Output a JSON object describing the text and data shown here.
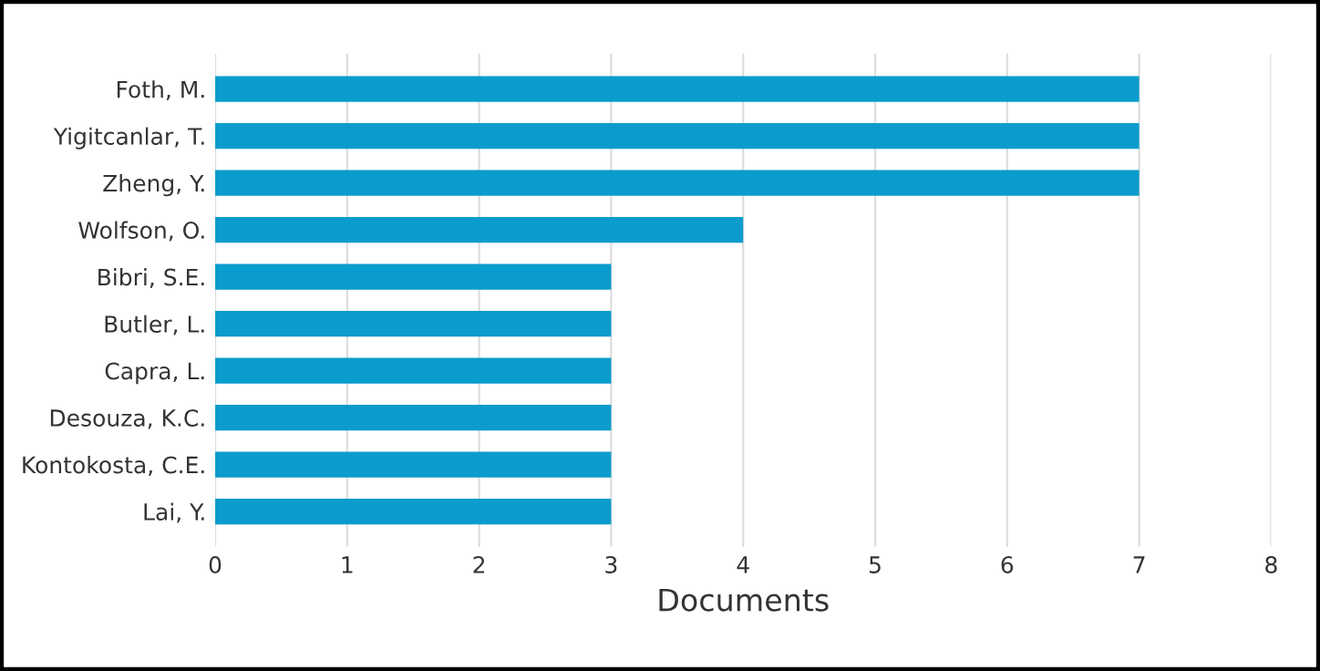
{
  "chart_data": {
    "type": "bar",
    "orientation": "horizontal",
    "xlabel": "Documents",
    "categories": [
      "Foth, M.",
      "Yigitcanlar, T.",
      "Zheng, Y.",
      "Wolfson, O.",
      "Bibri, S.E.",
      "Butler, L.",
      "Capra, L.",
      "Desouza, K.C.",
      "Kontokosta, C.E.",
      "Lai, Y."
    ],
    "values": [
      7,
      7,
      7,
      4,
      3,
      3,
      3,
      3,
      3,
      3
    ],
    "color": "#0a9ccc",
    "xlim": [
      0,
      8
    ],
    "xticks": [
      0,
      1,
      2,
      3,
      4,
      5,
      6,
      7,
      8
    ],
    "grid": "x",
    "legend": false
  }
}
